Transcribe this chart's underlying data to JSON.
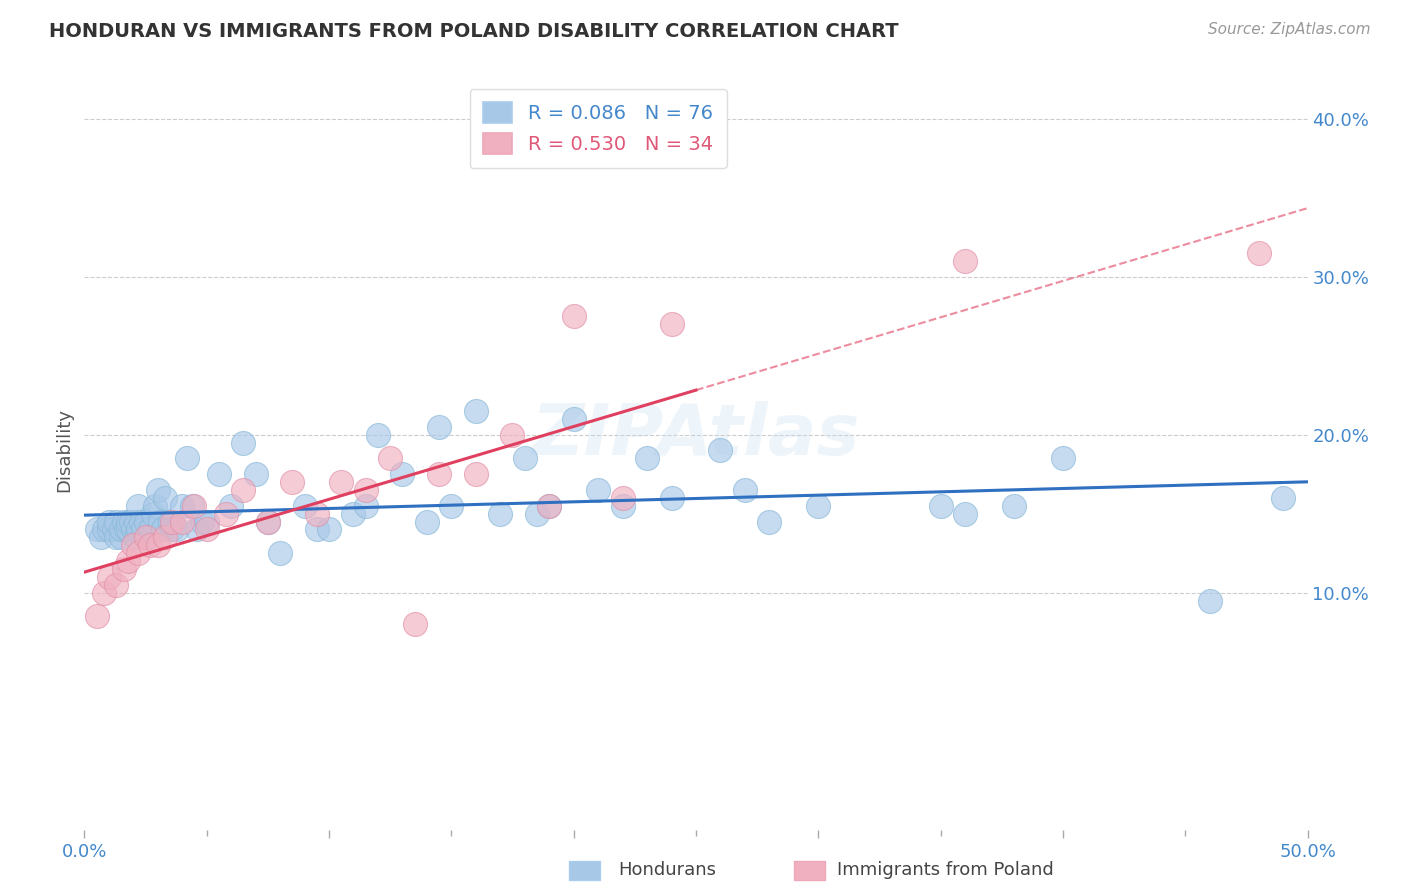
{
  "title": "HONDURAN VS IMMIGRANTS FROM POLAND DISABILITY CORRELATION CHART",
  "source": "Source: ZipAtlas.com",
  "ylabel": "Disability",
  "xlim": [
    0.0,
    0.5
  ],
  "ylim": [
    -0.05,
    0.43
  ],
  "ytick_positions": [
    0.1,
    0.2,
    0.3,
    0.4
  ],
  "ytick_labels": [
    "10.0%",
    "20.0%",
    "30.0%",
    "40.0%"
  ],
  "grid_color": "#cccccc",
  "background_color": "#ffffff",
  "honduran_color": "#a8c8e8",
  "poland_color": "#f0b0c0",
  "honduran_line_color": "#3070c0",
  "poland_line_color": "#e04060",
  "honduran_R": 0.086,
  "honduran_N": 76,
  "poland_R": 0.53,
  "poland_N": 34,
  "honduran_x": [
    0.005,
    0.007,
    0.008,
    0.01,
    0.01,
    0.012,
    0.013,
    0.013,
    0.015,
    0.015,
    0.016,
    0.017,
    0.018,
    0.018,
    0.019,
    0.02,
    0.021,
    0.021,
    0.022,
    0.022,
    0.023,
    0.024,
    0.025,
    0.026,
    0.027,
    0.028,
    0.029,
    0.03,
    0.031,
    0.032,
    0.033,
    0.035,
    0.036,
    0.038,
    0.04,
    0.042,
    0.044,
    0.046,
    0.048,
    0.05,
    0.055,
    0.06,
    0.065,
    0.07,
    0.075,
    0.08,
    0.09,
    0.095,
    0.1,
    0.11,
    0.115,
    0.12,
    0.13,
    0.14,
    0.145,
    0.15,
    0.16,
    0.17,
    0.18,
    0.185,
    0.19,
    0.2,
    0.21,
    0.22,
    0.23,
    0.24,
    0.26,
    0.27,
    0.28,
    0.3,
    0.35,
    0.36,
    0.38,
    0.4,
    0.46,
    0.49
  ],
  "honduran_y": [
    0.14,
    0.135,
    0.14,
    0.14,
    0.145,
    0.14,
    0.135,
    0.145,
    0.135,
    0.14,
    0.145,
    0.14,
    0.14,
    0.145,
    0.145,
    0.14,
    0.135,
    0.145,
    0.155,
    0.14,
    0.145,
    0.14,
    0.145,
    0.135,
    0.14,
    0.15,
    0.155,
    0.165,
    0.145,
    0.14,
    0.16,
    0.145,
    0.14,
    0.14,
    0.155,
    0.185,
    0.155,
    0.14,
    0.145,
    0.145,
    0.175,
    0.155,
    0.195,
    0.175,
    0.145,
    0.125,
    0.155,
    0.14,
    0.14,
    0.15,
    0.155,
    0.2,
    0.175,
    0.145,
    0.205,
    0.155,
    0.215,
    0.15,
    0.185,
    0.15,
    0.155,
    0.21,
    0.165,
    0.155,
    0.185,
    0.16,
    0.19,
    0.165,
    0.145,
    0.155,
    0.155,
    0.15,
    0.155,
    0.185,
    0.095,
    0.16
  ],
  "poland_x": [
    0.005,
    0.008,
    0.01,
    0.013,
    0.016,
    0.018,
    0.02,
    0.022,
    0.025,
    0.027,
    0.03,
    0.033,
    0.036,
    0.04,
    0.045,
    0.05,
    0.058,
    0.065,
    0.075,
    0.085,
    0.095,
    0.105,
    0.115,
    0.125,
    0.135,
    0.145,
    0.16,
    0.175,
    0.19,
    0.2,
    0.22,
    0.24,
    0.36,
    0.48
  ],
  "poland_y": [
    0.085,
    0.1,
    0.11,
    0.105,
    0.115,
    0.12,
    0.13,
    0.125,
    0.135,
    0.13,
    0.13,
    0.135,
    0.145,
    0.145,
    0.155,
    0.14,
    0.15,
    0.165,
    0.145,
    0.17,
    0.15,
    0.17,
    0.165,
    0.185,
    0.08,
    0.175,
    0.175,
    0.2,
    0.155,
    0.275,
    0.16,
    0.27,
    0.31,
    0.315
  ]
}
